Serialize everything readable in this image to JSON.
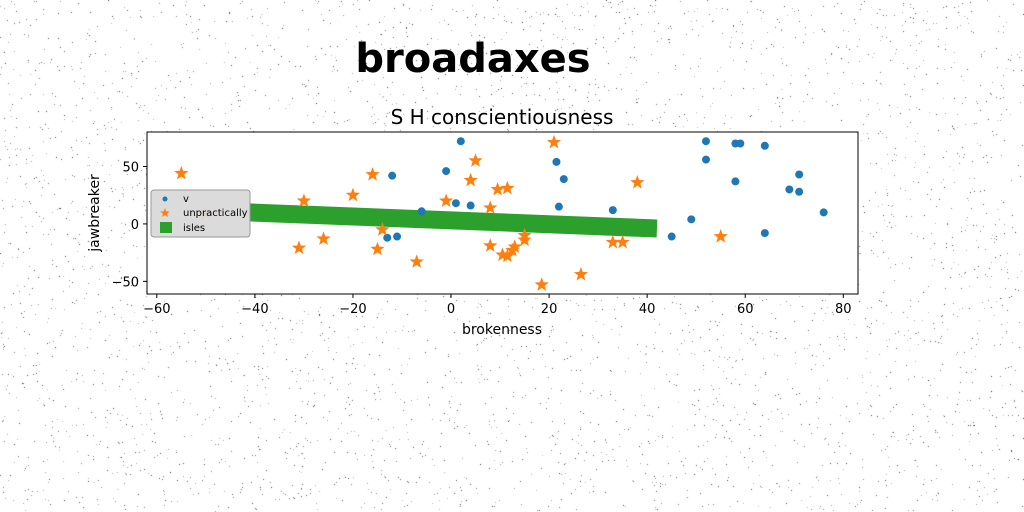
{
  "figure": {
    "suptitle": "broadaxes"
  },
  "chart_data": {
    "type": "scatter",
    "title": "S H conscientiousness",
    "xlabel": "brokenness",
    "ylabel": "jawbreaker",
    "xlim": [
      -62,
      83
    ],
    "ylim": [
      -61,
      80
    ],
    "xticks": [
      -60,
      -40,
      -20,
      0,
      20,
      40,
      60,
      80
    ],
    "yticks": [
      -50,
      0,
      50
    ],
    "grid": false,
    "legend": {
      "location": "center-left",
      "entries": [
        "v",
        "unpractically",
        "isles"
      ]
    },
    "colors": {
      "v": "#1f77b4",
      "unpractically": "#ff7f0e",
      "isles": "#2ca02c"
    },
    "series": [
      {
        "name": "v",
        "marker": "circle",
        "points": [
          [
            2,
            72
          ],
          [
            21.5,
            54
          ],
          [
            23,
            39
          ],
          [
            -12,
            42
          ],
          [
            -1,
            46
          ],
          [
            1,
            18
          ],
          [
            4,
            16
          ],
          [
            22,
            15
          ],
          [
            33,
            12
          ],
          [
            -6,
            11
          ],
          [
            -13,
            -12
          ],
          [
            -11,
            -11
          ],
          [
            45,
            -11
          ],
          [
            49,
            4
          ],
          [
            52,
            72
          ],
          [
            52,
            56
          ],
          [
            58,
            70
          ],
          [
            59,
            70
          ],
          [
            58,
            37
          ],
          [
            64,
            68
          ],
          [
            64,
            -8
          ],
          [
            69,
            30
          ],
          [
            71,
            28
          ],
          [
            71,
            43
          ],
          [
            76,
            10
          ]
        ]
      },
      {
        "name": "unpractically",
        "marker": "star",
        "points": [
          [
            -55,
            44
          ],
          [
            -50,
            9
          ],
          [
            -30,
            20
          ],
          [
            -31,
            -21
          ],
          [
            -26,
            -13
          ],
          [
            -20,
            25
          ],
          [
            -16,
            43
          ],
          [
            -15,
            -22
          ],
          [
            -14,
            -5
          ],
          [
            -7,
            -33
          ],
          [
            -1,
            20
          ],
          [
            4,
            38
          ],
          [
            5,
            55
          ],
          [
            8,
            -19
          ],
          [
            8,
            14
          ],
          [
            9.5,
            30
          ],
          [
            10.5,
            -27
          ],
          [
            11.5,
            31
          ],
          [
            11.5,
            -28
          ],
          [
            12.5,
            -23
          ],
          [
            13,
            -20
          ],
          [
            15,
            -10
          ],
          [
            15,
            -14
          ],
          [
            18.5,
            -53
          ],
          [
            21,
            71
          ],
          [
            26.5,
            -44
          ],
          [
            33,
            -16
          ],
          [
            35,
            -16
          ],
          [
            38,
            36
          ],
          [
            55,
            -11
          ]
        ]
      },
      {
        "name": "isles",
        "marker": "square",
        "line": {
          "x": [
            -41,
            42
          ],
          "y": [
            10,
            -4
          ]
        }
      }
    ]
  }
}
